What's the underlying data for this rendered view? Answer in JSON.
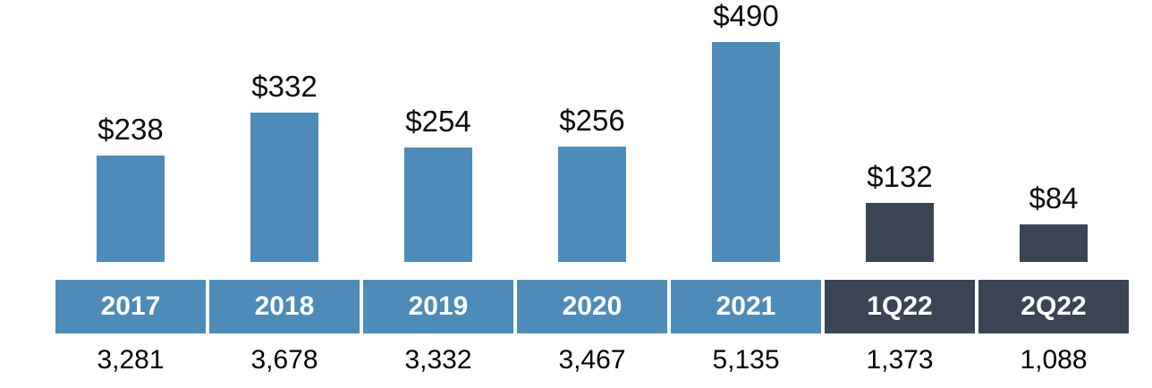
{
  "chart_data": {
    "type": "bar",
    "title": "",
    "categories": [
      "2017",
      "2018",
      "2019",
      "2020",
      "2021",
      "1Q22",
      "2Q22"
    ],
    "series": [
      {
        "name": "value-above-bar-usd",
        "values": [
          238,
          332,
          254,
          256,
          490,
          132,
          84
        ],
        "labels": [
          "$238",
          "$332",
          "$254",
          "$256",
          "$490",
          "$132",
          "$84"
        ]
      },
      {
        "name": "total-below-axis",
        "values": [
          3281,
          3678,
          3332,
          3467,
          5135,
          1373,
          1088
        ],
        "labels": [
          "3,281",
          "3,678",
          "3,332",
          "3,467",
          "5,135",
          "1,373",
          "1,088"
        ]
      }
    ],
    "groups": [
      "annual",
      "annual",
      "annual",
      "annual",
      "annual",
      "quarterly",
      "quarterly"
    ],
    "colors": {
      "annual": "#4D8CB9",
      "quarterly": "#3A4455",
      "band_text": "#FFFFFF",
      "data_label_text": "#0D0D0D"
    },
    "ylim": [
      0,
      490
    ],
    "grid": false,
    "legend": "none",
    "data_labels": "above-bars",
    "category_axis_style": "colored-band-with-gaps"
  }
}
